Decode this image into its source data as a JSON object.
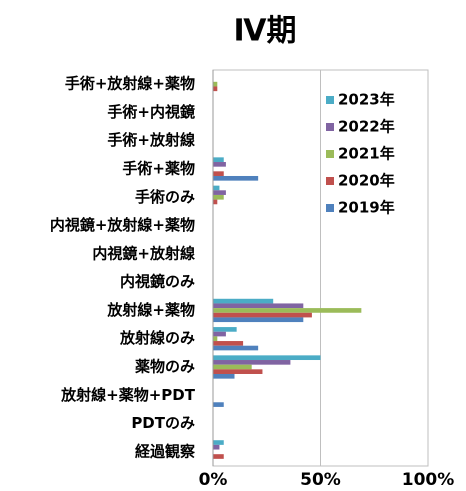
{
  "chart_data": {
    "type": "hbar",
    "title": "Ⅳ期",
    "categories": [
      "手術+放射線+薬物",
      "手術+内視鏡",
      "手術+放射線",
      "手術+薬物",
      "手術のみ",
      "内視鏡+放射線+薬物",
      "内視鏡+放射線",
      "内視鏡のみ",
      "放射線+薬物",
      "放射線のみ",
      "薬物のみ",
      "放射線+薬物+PDT",
      "PDTのみ",
      "経過観察"
    ],
    "series": [
      {
        "name": "2023年",
        "color": "#4bacc6",
        "values": [
          0,
          0,
          0,
          5,
          3,
          0,
          0,
          0,
          28,
          11,
          50,
          0,
          0,
          5
        ]
      },
      {
        "name": "2022年",
        "color": "#8064a2",
        "values": [
          0,
          0,
          0,
          6,
          6,
          0,
          0,
          0,
          42,
          6,
          36,
          0,
          0,
          3
        ]
      },
      {
        "name": "2021年",
        "color": "#9bbb59",
        "values": [
          2,
          0,
          0,
          0,
          5,
          0,
          0,
          0,
          69,
          2,
          18,
          0,
          0,
          0
        ]
      },
      {
        "name": "2020年",
        "color": "#c0504d",
        "values": [
          2,
          0,
          0,
          5,
          2,
          0,
          0,
          0,
          46,
          14,
          23,
          0,
          0,
          5
        ]
      },
      {
        "name": "2019年",
        "color": "#4f81bd",
        "values": [
          0,
          0,
          0,
          21,
          0,
          0,
          0,
          0,
          42,
          21,
          10,
          5,
          0,
          0
        ]
      }
    ],
    "xlim": [
      0,
      100
    ],
    "xticks": [
      {
        "value": 0,
        "label": "0%"
      },
      {
        "value": 50,
        "label": "50%"
      },
      {
        "value": 100,
        "label": "100%"
      }
    ],
    "grid": true,
    "legend": "upper-right"
  }
}
